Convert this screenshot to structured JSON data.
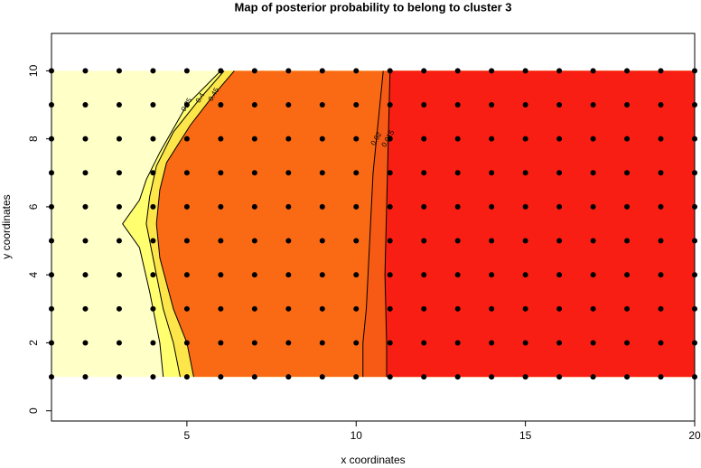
{
  "chart_data": {
    "type": "contour",
    "title": "Map of posterior probability to belong to cluster  3",
    "x_label": "x coordinates",
    "y_label": "y coordinates",
    "xlim": [
      1,
      20
    ],
    "ylim": [
      -0.3,
      11.1
    ],
    "xticks": [
      5,
      10,
      15,
      20
    ],
    "yticks": [
      0,
      2,
      4,
      6,
      8,
      10
    ],
    "grid_x": [
      1,
      2,
      3,
      4,
      5,
      6,
      7,
      8,
      9,
      10,
      11,
      12,
      13,
      14,
      15,
      16,
      17,
      18,
      19,
      20
    ],
    "grid_y": [
      1,
      2,
      3,
      4,
      5,
      6,
      7,
      8,
      9,
      10
    ],
    "point_color": "#000000",
    "background": "#ffffc8",
    "contours": [
      {
        "label": "0.35",
        "fill": "#ffff70",
        "x": [
          6.0,
          5.0,
          4.2,
          3.8,
          3.6,
          3.1,
          3.6,
          3.9,
          4.2,
          4.3
        ],
        "y": [
          10,
          9,
          7.6,
          6.8,
          6.2,
          5.5,
          4.8,
          3.5,
          2,
          1
        ]
      },
      {
        "label": "0.4",
        "fill": "#fde64a",
        "x": [
          6.1,
          5.4,
          4.6,
          4.1,
          3.9,
          3.8,
          4.0,
          4.3,
          4.6,
          4.8
        ],
        "y": [
          10,
          9.2,
          8.2,
          7.2,
          6.3,
          5.5,
          4.5,
          3,
          2,
          1
        ]
      },
      {
        "label": "0.45",
        "fill": "#fa6a14",
        "x": [
          6.4,
          5.8,
          5.1,
          4.4,
          4.2,
          4.1,
          4.2,
          4.6,
          5.0,
          5.2
        ],
        "y": [
          10,
          9.3,
          8.4,
          7.3,
          6.5,
          5.5,
          4.5,
          3,
          2,
          1
        ]
      },
      {
        "label": "0.02",
        "fill": "#f65a14",
        "x": [
          10.8,
          10.6,
          10.5,
          10.4,
          10.3,
          10.2,
          10.2
        ],
        "y": [
          10,
          8,
          7,
          5,
          3,
          2,
          1
        ]
      },
      {
        "label": "0.015",
        "fill": "#f81e14",
        "x": [
          11.0,
          10.95,
          10.9,
          10.85,
          10.9,
          10.9
        ],
        "y": [
          10,
          8,
          6,
          4,
          2,
          1
        ]
      }
    ]
  }
}
